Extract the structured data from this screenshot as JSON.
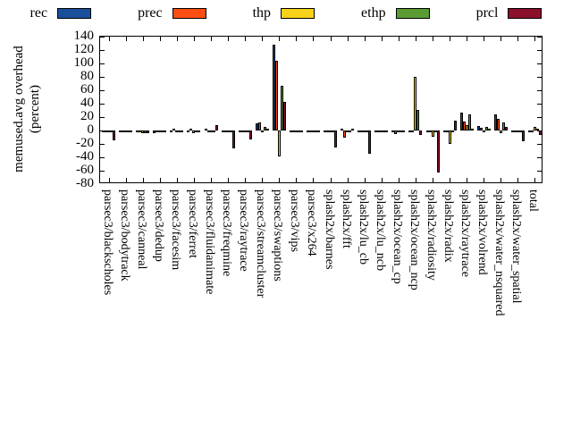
{
  "chart_data": {
    "type": "bar",
    "ylabel_line1": "memused.avg overhead",
    "ylabel_line2": "(percent)",
    "ylim": [
      -80,
      140
    ],
    "yticks": [
      140,
      120,
      100,
      80,
      60,
      40,
      20,
      0,
      -20,
      -40,
      -60,
      -80
    ],
    "grid": false,
    "legend_position": "top",
    "categories": [
      "parsec3/blackscholes",
      "parsec3/bodytrack",
      "parsec3/canneal",
      "parsec3/dedup",
      "parsec3/facesim",
      "parsec3/ferret",
      "parsec3/fluidanimate",
      "parsec3/freqmine",
      "parsec3/raytrace",
      "parsec3/streamcluster",
      "parsec3/swaptions",
      "parsec3/vips",
      "parsec3/x264",
      "splash2x/barnes",
      "splash2x/fft",
      "splash2x/lu_cb",
      "splash2x/lu_ncb",
      "splash2x/ocean_cp",
      "splash2x/ocean_ncp",
      "splash2x/radiosity",
      "splash2x/radix",
      "splash2x/raytrace",
      "splash2x/volrend",
      "splash2x/water_nsquared",
      "splash2x/water_spatial",
      "total"
    ],
    "series": [
      {
        "name": "rec",
        "color": "#1a4f9c",
        "values": [
          -2,
          -2,
          -3,
          -4,
          -1,
          -2,
          2,
          -2,
          -2,
          10,
          128,
          -1,
          -2,
          -2,
          2,
          -2,
          -2,
          -2,
          -2,
          -2,
          -2,
          27,
          7,
          24,
          -1,
          -1
        ]
      },
      {
        "name": "prec",
        "color": "#fc4e12",
        "values": [
          -2,
          -1,
          -3,
          -2,
          2,
          2,
          -1,
          -2,
          -2,
          12,
          104,
          -2,
          -1,
          -2,
          -11,
          -2,
          -3,
          -5,
          -2,
          -2,
          -1,
          13,
          4,
          17,
          -2,
          -1
        ]
      },
      {
        "name": "thp",
        "color": "#f8d21a",
        "values": [
          -2,
          -2,
          -4,
          -2,
          -1,
          -4,
          -2,
          -2,
          -2,
          -1,
          -38,
          -1,
          -2,
          -3,
          -1,
          -2,
          -2,
          -2,
          80,
          -9,
          -20,
          8,
          -2,
          -4,
          -1,
          5
        ]
      },
      {
        "name": "ethp",
        "color": "#5a9b32",
        "values": [
          -2,
          -2,
          -4,
          -2,
          -1,
          -1,
          -1,
          -2,
          -2,
          5,
          67,
          -1,
          -1,
          -3,
          -1,
          -2,
          -2,
          -2,
          30,
          -2,
          -1,
          24,
          5,
          12,
          -1,
          3
        ]
      },
      {
        "name": "prcl",
        "color": "#8c102c",
        "values": [
          -15,
          -3,
          -4,
          -3,
          -2,
          -2,
          8,
          -27,
          -13,
          2,
          43,
          -2,
          -2,
          -25,
          3,
          -35,
          -3,
          -2,
          -7,
          -63,
          15,
          2,
          2,
          5,
          -16,
          -6
        ]
      }
    ]
  }
}
